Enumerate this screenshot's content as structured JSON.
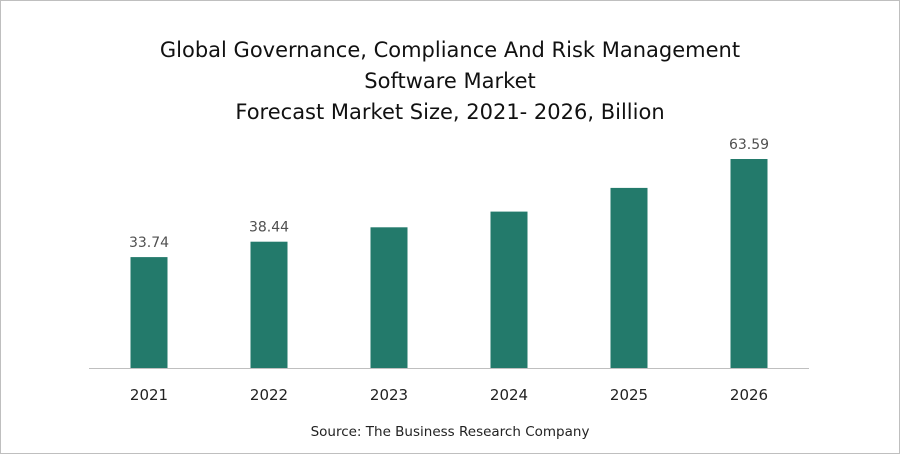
{
  "chart_data": {
    "type": "bar",
    "title": [
      "Global Governance,  Compliance And Risk Management",
      "Software Market",
      "Forecast Market Size, 2021- 2026, Billion"
    ],
    "categories": [
      "2021",
      "2022",
      "2023",
      "2024",
      "2025",
      "2026"
    ],
    "values": [
      33.74,
      38.44,
      42.8,
      47.6,
      54.8,
      63.59
    ],
    "data_labels": [
      "33.74",
      "38.44",
      "",
      "",
      "",
      "63.59"
    ],
    "xlabel": "",
    "ylabel": "",
    "ylim": [
      0,
      63.59
    ],
    "grid": false,
    "legend": "none",
    "bar_color": "#237a6b",
    "axis_color": "#bfbfbf"
  },
  "source": "Source: The Business Research Company"
}
